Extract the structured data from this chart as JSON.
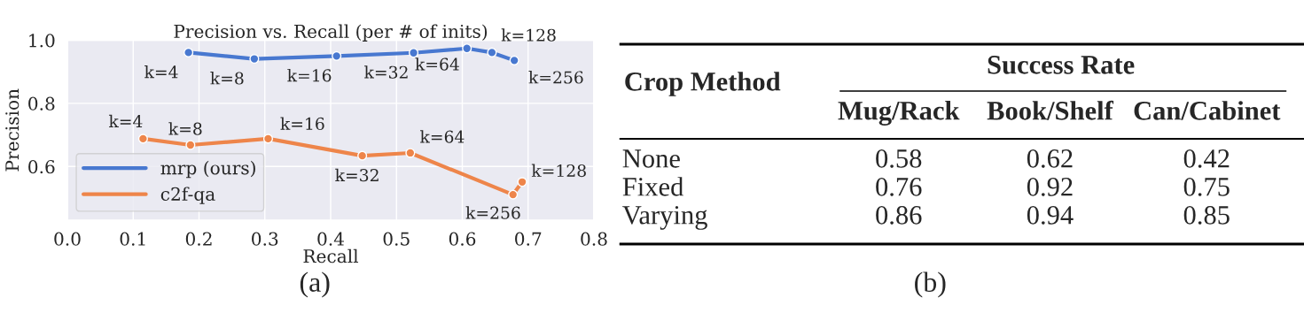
{
  "chart_data": [
    {
      "type": "line",
      "title": "Precision vs. Recall (per # of inits)",
      "xlabel": "Recall",
      "ylabel": "Precision",
      "xlim": [
        0.0,
        0.8
      ],
      "xticks": [
        {
          "value": 0.0,
          "label": "0.0"
        },
        0.1,
        0.2,
        0.3,
        0.4,
        0.5,
        0.6,
        0.7,
        0.8
      ],
      "ylim": [
        0.43,
        1.0
      ],
      "yticks": [
        0.6,
        0.8,
        {
          "value": 1.0,
          "label": "1.0"
        }
      ],
      "grid": true,
      "legend": "lower left",
      "marker": "circle",
      "line_style": "solid",
      "series": [
        {
          "name": "mrp (ours)",
          "color": "#4878d0",
          "x": [
            0.184,
            0.284,
            0.409,
            0.526,
            0.607,
            0.645,
            0.679
          ],
          "values": [
            0.961,
            0.941,
            0.95,
            0.96,
            0.974,
            0.961,
            0.936
          ]
        },
        {
          "name": "c2f-qa",
          "color": "#ee854a",
          "x": [
            0.115,
            0.187,
            0.305,
            0.448,
            0.521,
            0.677,
            0.691
          ],
          "values": [
            0.688,
            0.668,
            0.688,
            0.634,
            0.643,
            0.511,
            0.551
          ]
        }
      ],
      "annotations": [
        {
          "text": "k=4",
          "x": 0.184,
          "y": 0.961
        },
        {
          "text": "k=8",
          "x": 0.284,
          "y": 0.941
        },
        {
          "text": "k=16",
          "x": 0.409,
          "y": 0.95
        },
        {
          "text": "k=32",
          "x": 0.526,
          "y": 0.96
        },
        {
          "text": "k=64",
          "x": 0.607,
          "y": 0.974
        },
        {
          "text": "k=128",
          "x": 0.645,
          "y": 0.961
        },
        {
          "text": "k=256",
          "x": 0.679,
          "y": 0.936
        },
        {
          "text": "k=4",
          "x": 0.115,
          "y": 0.688
        },
        {
          "text": "k=8",
          "x": 0.187,
          "y": 0.668
        },
        {
          "text": "k=16",
          "x": 0.305,
          "y": 0.688
        },
        {
          "text": "k=32",
          "x": 0.448,
          "y": 0.634
        },
        {
          "text": "k=64",
          "x": 0.521,
          "y": 0.643
        },
        {
          "text": "k=256",
          "x": 0.677,
          "y": 0.511
        },
        {
          "text": "k=128",
          "x": 0.691,
          "y": 0.551
        },
        "(a)"
      ]
    },
    {
      "type": "other",
      "ylabel": "Crop Method",
      "xlabel": "Success Rate",
      "categories": [
        "Mug/Rack",
        "Book/Shelf",
        "Can/Cabinet"
      ],
      "series": [
        {
          "name": "None",
          "values": [
            0.58,
            0.62,
            0.42
          ]
        },
        {
          "name": "Fixed",
          "values": [
            0.76,
            0.92,
            0.75
          ]
        },
        {
          "name": "Varying",
          "values": [
            0.86,
            0.94,
            0.85
          ]
        }
      ],
      "data_labels": true,
      "annotations": [
        "(b)"
      ]
    }
  ]
}
